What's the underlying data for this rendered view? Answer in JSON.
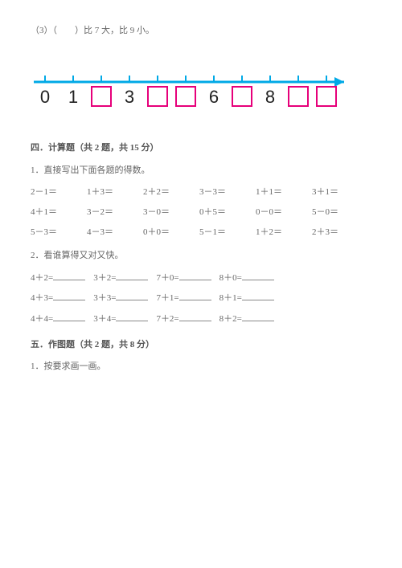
{
  "q3_text": "（3）（　　）比 7 大，比 9 小。",
  "numberLine": {
    "axisColor": "#00a9e6",
    "tickColor": "#00a9e6",
    "boxBorder": "#e6007a",
    "boxFill": "#ffffff",
    "labelColor": "#222222",
    "labels": [
      "0",
      "1",
      "",
      "3",
      "",
      "",
      "6",
      "",
      "8",
      "",
      ""
    ]
  },
  "section4": {
    "title": "四．计算题（共 2 题，共 15 分）",
    "q1_intro": "1．直接写出下面各题的得数。",
    "rows": [
      [
        "2－1＝",
        "1＋3＝",
        "2＋2＝",
        "3－3＝",
        "1＋1＝",
        "3＋1＝"
      ],
      [
        "4＋1＝",
        "3－2＝",
        "3－0＝",
        "0＋5＝",
        "0－0＝",
        "5－0＝"
      ],
      [
        "5－3＝",
        "4－3＝",
        "0＋0＝",
        "5－1＝",
        "1＋2＝",
        "2＋3＝"
      ]
    ],
    "q2_intro": "2．看谁算得又对又快。",
    "blankRows": [
      [
        "4＋2=",
        "3＋2=",
        "7＋0=",
        "8＋0="
      ],
      [
        "4＋3=",
        "3＋3=",
        "7＋1=",
        "8＋1="
      ],
      [
        "4＋4=",
        "3＋4=",
        "7＋2=",
        "8＋2="
      ]
    ]
  },
  "section5": {
    "title": "五．作图题（共 2 题，共 8 分）",
    "q1": "1．按要求画一画。"
  }
}
